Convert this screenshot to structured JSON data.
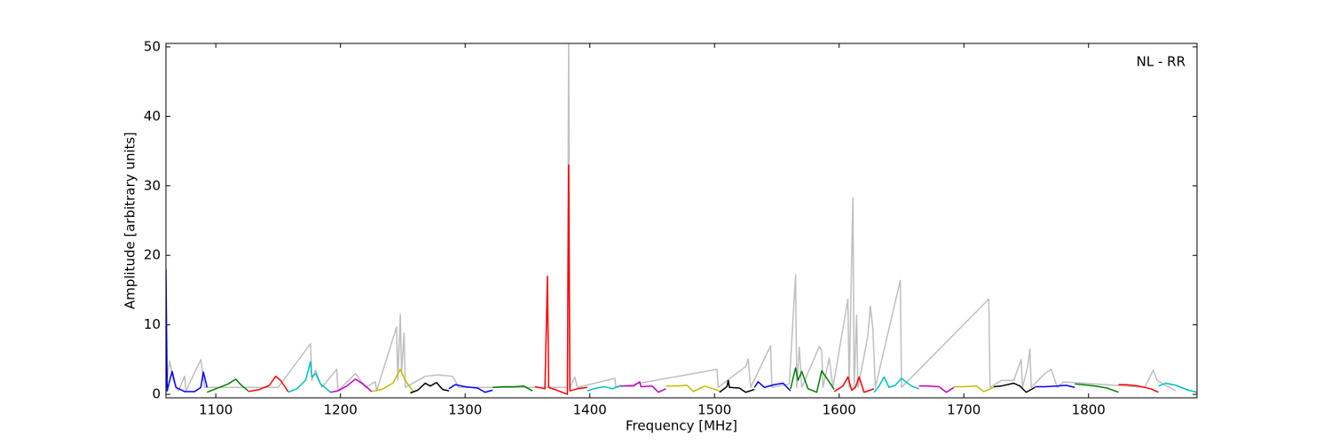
{
  "chart_data": {
    "type": "line",
    "xlabel": "Frequency [MHz]",
    "ylabel": "Amplitude [arbitrary units]",
    "annotation": "NL - RR",
    "xlim": [
      1060,
      1887
    ],
    "ylim": [
      -0.5,
      50.5
    ],
    "xticks": [
      1100,
      1200,
      1300,
      1400,
      1500,
      1600,
      1700,
      1800
    ],
    "yticks": [
      0,
      10,
      20,
      30,
      40,
      50
    ],
    "series": [
      {
        "color": "#bfbfbf",
        "x": [
          1060,
          1063,
          1066,
          1070,
          1075,
          1076,
          1088,
          1091,
          1150,
          1176,
          1177,
          1180,
          1185,
          1197,
          1198,
          1212,
          1220,
          1228,
          1229,
          1245,
          1246,
          1248,
          1249,
          1251,
          1252,
          1268,
          1278,
          1290,
          1295,
          1382,
          1383,
          1384,
          1388,
          1390,
          1420,
          1421,
          1502,
          1503,
          1525,
          1527,
          1529,
          1545,
          1546,
          1560,
          1565,
          1566,
          1568,
          1570,
          1584,
          1586,
          1587,
          1592,
          1595,
          1607,
          1608,
          1611,
          1612,
          1614,
          1615,
          1620,
          1623,
          1625,
          1627,
          1629,
          1649,
          1650,
          1720,
          1721,
          1730,
          1740,
          1745,
          1746,
          1747,
          1751,
          1753,
          1754,
          1765,
          1770,
          1775,
          1780,
          1845,
          1852,
          1855,
          1870
        ],
        "values": [
          1,
          4.8,
          2,
          0.5,
          2.6,
          0.5,
          5,
          1,
          1,
          7.3,
          2,
          3.5,
          1,
          3.6,
          0.5,
          3,
          1,
          1.8,
          0.5,
          9.7,
          2,
          11.5,
          3,
          8.8,
          1,
          2.6,
          2.8,
          2.6,
          1,
          1,
          52,
          1,
          2.5,
          1,
          2.3,
          1,
          3.6,
          1,
          4,
          5.1,
          1,
          7,
          1,
          1.5,
          17.2,
          1,
          6.8,
          1,
          6.9,
          6.4,
          1,
          5.2,
          1,
          13.7,
          1,
          28.3,
          1,
          11.4,
          1,
          5.5,
          8.5,
          12.7,
          9.5,
          1,
          16.4,
          1,
          13.7,
          1,
          2,
          2,
          4.5,
          5,
          1,
          3.8,
          6.5,
          1,
          3,
          3.6,
          1,
          1.8,
          1,
          3.5,
          2,
          0.5
        ]
      },
      {
        "color": "#0000ff",
        "x": [
          1060,
          1061,
          1063,
          1065,
          1068,
          1075,
          1083,
          1088,
          1090,
          1093
        ],
        "values": [
          18,
          0.5,
          2,
          3.3,
          1,
          0.4,
          0.4,
          1,
          3.2,
          1
        ]
      },
      {
        "color": "#008000",
        "x": [
          1093,
          1100,
          1110,
          1116,
          1120,
          1126
        ],
        "values": [
          0.3,
          0.8,
          1.5,
          2.2,
          1.4,
          0.5
        ]
      },
      {
        "color": "#ff0000",
        "x": [
          1126,
          1135,
          1143,
          1148,
          1152,
          1158
        ],
        "values": [
          0.4,
          0.7,
          1.3,
          2.6,
          2,
          0.4
        ]
      },
      {
        "color": "#00bfbf",
        "x": [
          1158,
          1165,
          1172,
          1176,
          1177,
          1180,
          1184,
          1192
        ],
        "values": [
          0.3,
          0.8,
          2,
          4.7,
          2.5,
          3,
          1.5,
          0.3
        ]
      },
      {
        "color": "#bf00bf",
        "x": [
          1192,
          1198,
          1205,
          1212,
          1218,
          1225
        ],
        "values": [
          0.3,
          0.5,
          1.2,
          2.2,
          1.5,
          0.4
        ]
      },
      {
        "color": "#bfbf00",
        "x": [
          1225,
          1233,
          1242,
          1248,
          1252,
          1258
        ],
        "values": [
          0.4,
          0.7,
          1.6,
          3.6,
          2,
          0.5
        ]
      },
      {
        "color": "#000000",
        "x": [
          1256,
          1262,
          1268,
          1272,
          1277,
          1282,
          1287
        ],
        "values": [
          0.2,
          0.6,
          1.6,
          1.2,
          1.7,
          0.7,
          0.5
        ]
      },
      {
        "color": "#0000ff",
        "x": [
          1287,
          1292,
          1300,
          1310,
          1316,
          1322
        ],
        "values": [
          0.8,
          1.4,
          1.1,
          0.9,
          0.3,
          0.6
        ]
      },
      {
        "color": "#008000",
        "x": [
          1322,
          1330,
          1340,
          1347,
          1354
        ],
        "values": [
          1,
          1.1,
          1.1,
          1.2,
          0.5
        ]
      },
      {
        "color": "#ff0000",
        "x": [
          1356,
          1364,
          1366,
          1367,
          1375,
          1382,
          1383,
          1384,
          1390,
          1398
        ],
        "values": [
          1.1,
          0.8,
          17,
          1,
          0.5,
          0,
          33,
          0.5,
          0.8,
          1
        ]
      },
      {
        "color": "#00bfbf",
        "x": [
          1398,
          1405,
          1412,
          1418,
          1425
        ],
        "values": [
          0.5,
          0.9,
          1.1,
          0.8,
          1.3
        ]
      },
      {
        "color": "#bf00bf",
        "x": [
          1425,
          1435,
          1440,
          1441,
          1450,
          1455,
          1461
        ],
        "values": [
          1.2,
          1.2,
          1.8,
          1.1,
          1.2,
          0.3,
          0.8
        ]
      },
      {
        "color": "#bfbf00",
        "x": [
          1461,
          1470,
          1478,
          1483,
          1492,
          1504
        ],
        "values": [
          1.2,
          1.2,
          1.3,
          0.4,
          1.2,
          0.5
        ]
      },
      {
        "color": "#000000",
        "x": [
          1504,
          1510,
          1511,
          1512,
          1520,
          1525,
          1532
        ],
        "values": [
          0.3,
          1.1,
          2,
          1,
          0.9,
          0.3,
          0.7
        ]
      },
      {
        "color": "#0000ff",
        "x": [
          1532,
          1535,
          1540,
          1548,
          1555,
          1561
        ],
        "values": [
          1,
          1.8,
          1,
          1.4,
          1.6,
          0.5
        ]
      },
      {
        "color": "#008000",
        "x": [
          1561,
          1565,
          1567,
          1570,
          1575,
          1582,
          1586,
          1596
        ],
        "values": [
          0.8,
          3.8,
          2,
          3.3,
          0.8,
          0.3,
          3.4,
          0.7
        ]
      },
      {
        "color": "#ff0000",
        "x": [
          1596,
          1603,
          1607,
          1610,
          1613,
          1616,
          1620,
          1628
        ],
        "values": [
          0.4,
          1.2,
          2.5,
          0.6,
          1,
          2.5,
          0.3,
          0.8
        ]
      },
      {
        "color": "#00bfbf",
        "x": [
          1628,
          1632,
          1636,
          1640,
          1645,
          1650,
          1658,
          1664
        ],
        "values": [
          0.3,
          1.2,
          2.5,
          1,
          1.3,
          2.3,
          1.2,
          0.8
        ]
      },
      {
        "color": "#bf00bf",
        "x": [
          1664,
          1670,
          1680,
          1686,
          1692
        ],
        "values": [
          1.2,
          1.2,
          1.1,
          0.3,
          1
        ]
      },
      {
        "color": "#bfbf00",
        "x": [
          1692,
          1700,
          1710,
          1716,
          1724
        ],
        "values": [
          1.1,
          1.1,
          1.2,
          0.4,
          1
        ]
      },
      {
        "color": "#000000",
        "x": [
          1724,
          1730,
          1740,
          1745,
          1750,
          1757
        ],
        "values": [
          1.1,
          1.2,
          1.6,
          1.2,
          0.3,
          1
        ]
      },
      {
        "color": "#0000ff",
        "x": [
          1757,
          1765,
          1775,
          1782,
          1789
        ],
        "values": [
          1.1,
          1.1,
          1.2,
          1.3,
          1
        ]
      },
      {
        "color": "#008000",
        "x": [
          1789,
          1795,
          1805,
          1815,
          1824
        ],
        "values": [
          1.5,
          1.4,
          1.2,
          0.9,
          0.3
        ]
      },
      {
        "color": "#ff0000",
        "x": [
          1824,
          1830,
          1840,
          1850,
          1856
        ],
        "values": [
          1.4,
          1.4,
          1.2,
          0.8,
          0.3
        ]
      },
      {
        "color": "#00bfbf",
        "x": [
          1856,
          1862,
          1870,
          1880,
          1887
        ],
        "values": [
          1.2,
          1.6,
          1.3,
          0.6,
          0.3
        ]
      }
    ]
  }
}
